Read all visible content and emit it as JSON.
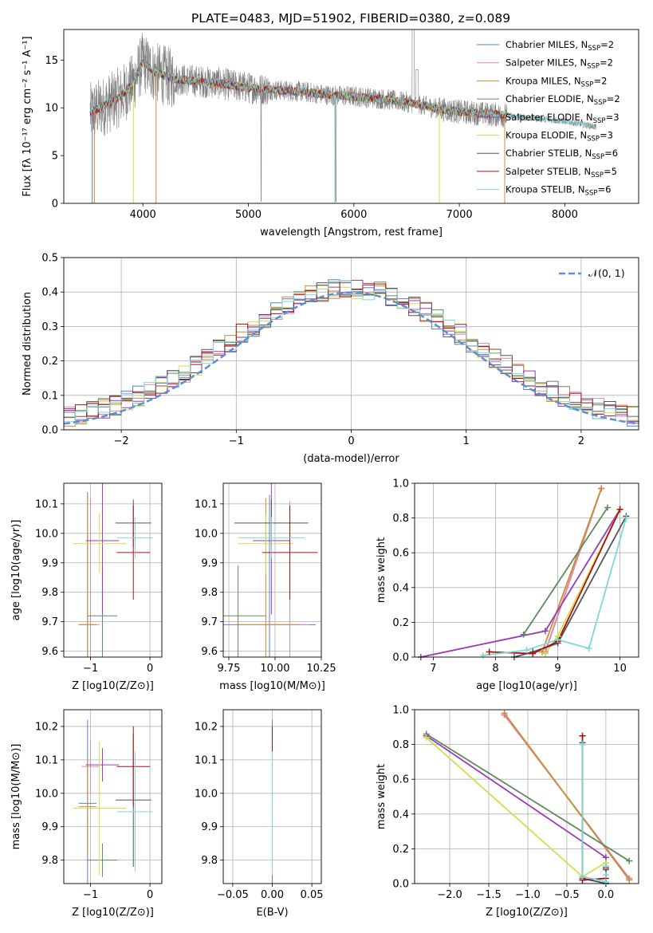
{
  "figure_title": "PLATE=0483, MJD=51902, FIBERID=0380, z=0.089",
  "colors": {
    "Chabrier MILES": "#5b7fd6",
    "Salpeter MILES": "#e08aa8",
    "Kroupa MILES": "#cc8c34",
    "Chabrier ELODIE": "#5e8a5e",
    "Salpeter ELODIE": "#9a3ab8",
    "Kroupa ELODIE": "#cfe04c",
    "Chabrier STELIB": "#555555",
    "Salpeter STELIB": "#aa1010",
    "Kroupa STELIB": "#7fd8d8",
    "data": "#808080",
    "normal": "#5b8fd6",
    "orange": "#e07030"
  },
  "chart_data": [
    {
      "id": "spectrum",
      "type": "line",
      "title": "PLATE=0483, MJD=51902, FIBERID=0380, z=0.089",
      "xlabel": "wavelength [Angstrom, rest frame]",
      "ylabel": "Flux [fλ 10⁻¹⁷ erg cm⁻² s⁻¹ A⁻¹]",
      "xlim": [
        3250,
        8700
      ],
      "ylim": [
        0,
        18.2
      ],
      "xticks": [
        4000,
        5000,
        6000,
        7000,
        8000
      ],
      "yticks": [
        0,
        5,
        10,
        15
      ],
      "legend": [
        "Chabrier MILES, N_SSP=2",
        "Salpeter MILES, N_SSP=2",
        "Kroupa MILES, N_SSP=2",
        "Chabrier ELODIE, N_SSP=2",
        "Salpeter ELODIE, N_SSP=3",
        "Kroupa ELODIE, N_SSP=3",
        "Chabrier STELIB, N_SSP=6",
        "Salpeter STELIB, N_SSP=5",
        "Kroupa STELIB, N_SSP=6"
      ],
      "legend_labels": [
        {
          "name": "Chabrier MILES",
          "n": "2",
          "color": "Chabrier MILES"
        },
        {
          "name": "Salpeter MILES",
          "n": "2",
          "color": "Salpeter MILES"
        },
        {
          "name": "Kroupa MILES",
          "n": "2",
          "color": "Kroupa MILES"
        },
        {
          "name": "Chabrier ELODIE",
          "n": "2",
          "color": "Chabrier ELODIE"
        },
        {
          "name": "Salpeter ELODIE",
          "n": "3",
          "color": "Salpeter ELODIE"
        },
        {
          "name": "Kroupa ELODIE",
          "n": "3",
          "color": "Kroupa ELODIE"
        },
        {
          "name": "Chabrier STELIB",
          "n": "6",
          "color": "Chabrier STELIB"
        },
        {
          "name": "Salpeter STELIB",
          "n": "5",
          "color": "Salpeter STELIB"
        },
        {
          "name": "Kroupa STELIB",
          "n": "6",
          "color": "Kroupa STELIB"
        }
      ],
      "legend_placement": "top-right",
      "continuum": [
        [
          3500,
          9.5
        ],
        [
          3600,
          10.0
        ],
        [
          3700,
          10.6
        ],
        [
          3800,
          11.3
        ],
        [
          3900,
          12.5
        ],
        [
          4000,
          14.8
        ],
        [
          4100,
          13.8
        ],
        [
          4200,
          13.4
        ],
        [
          4300,
          13.0
        ],
        [
          4500,
          12.8
        ],
        [
          4700,
          12.6
        ],
        [
          5000,
          12.1
        ],
        [
          5200,
          11.9
        ],
        [
          5500,
          11.7
        ],
        [
          5800,
          11.3
        ],
        [
          6000,
          11.2
        ],
        [
          6300,
          10.9
        ],
        [
          6600,
          10.4
        ],
        [
          6800,
          9.9
        ],
        [
          7000,
          9.6
        ],
        [
          7200,
          9.4
        ],
        [
          7450,
          9.2
        ],
        [
          7600,
          9.0
        ],
        [
          7800,
          8.8
        ],
        [
          8000,
          8.6
        ],
        [
          8300,
          8.0
        ]
      ],
      "model_end": 7450,
      "data_end": 8300
    },
    {
      "id": "residuals",
      "type": "line",
      "xlabel": "(data-model)/error",
      "ylabel": "Normed distribution",
      "xlim": [
        -2.5,
        2.5
      ],
      "ylim": [
        0,
        0.5
      ],
      "xticks": [
        -2,
        -1,
        0,
        1,
        2
      ],
      "yticks": [
        0.0,
        0.1,
        0.2,
        0.3,
        0.4,
        0.5
      ],
      "legend": [
        "𝒩(0, 1)"
      ],
      "legend_placement": "top-right",
      "grid": true,
      "bin_width": 0.1,
      "curve": "normal pdf, mean 0, sigma 1"
    },
    {
      "id": "age_vs_Z",
      "type": "scatter",
      "xlabel": "Z [log10(Z/Z⊙)]",
      "ylabel": "age [log10(age/yr)]",
      "xlim": [
        -1.45,
        0.2
      ],
      "ylim": [
        9.58,
        10.17
      ],
      "xticks": [
        -1,
        0
      ],
      "yticks": [
        9.6,
        9.7,
        9.8,
        9.9,
        10.0,
        10.1
      ],
      "grid": true,
      "series": [
        {
          "name": "Chabrier MILES",
          "x": -1.05,
          "xerr": 0.15,
          "y": 9.69,
          "yerr": 0.45
        },
        {
          "name": "Salpeter MILES",
          "x": -1.0,
          "xerr": 0.15,
          "y": 9.69,
          "yerr": 0.43
        },
        {
          "name": "Kroupa MILES",
          "x": -1.05,
          "xerr": 0.15,
          "y": 9.69,
          "yerr": 0.44
        },
        {
          "name": "Chabrier ELODIE",
          "x": -0.8,
          "xerr": 0.25,
          "y": 9.72,
          "yerr": 0.17
        },
        {
          "name": "Salpeter ELODIE",
          "x": -0.8,
          "xerr": 0.28,
          "y": 9.975,
          "yerr": 0.25
        },
        {
          "name": "Kroupa ELODIE",
          "x": -0.85,
          "xerr": 0.45,
          "y": 9.965,
          "yerr": 0.1
        },
        {
          "name": "Chabrier STELIB",
          "x": -0.28,
          "xerr": 0.3,
          "y": 10.035,
          "yerr": 0.08
        },
        {
          "name": "Salpeter STELIB",
          "x": -0.28,
          "xerr": 0.28,
          "y": 9.935,
          "yerr": 0.16
        },
        {
          "name": "Kroupa STELIB",
          "x": -0.25,
          "xerr": 0.3,
          "y": 9.985,
          "yerr": 0.07
        }
      ]
    },
    {
      "id": "age_vs_mass",
      "type": "scatter",
      "xlabel": "mass [log10(M/M⊙)]",
      "ylabel": "",
      "xlim": [
        9.72,
        10.25
      ],
      "ylim": [
        9.58,
        10.17
      ],
      "xticks": [
        9.75,
        10.0,
        10.25
      ],
      "yticks": [
        9.6,
        9.7,
        9.8,
        9.9,
        10.0,
        10.1
      ],
      "grid": true,
      "series": [
        {
          "name": "Chabrier MILES",
          "x": 9.97,
          "xerr": 0.25,
          "y": 9.69,
          "yerr": 0.44
        },
        {
          "name": "Salpeter MILES",
          "x": 10.08,
          "xerr": 0.1,
          "y": 9.69,
          "yerr": 0.42
        },
        {
          "name": "Kroupa MILES",
          "x": 9.95,
          "xerr": 0.18,
          "y": 9.69,
          "yerr": 0.43
        },
        {
          "name": "Chabrier ELODIE",
          "x": 9.8,
          "xerr": 0.15,
          "y": 9.72,
          "yerr": 0.17
        },
        {
          "name": "Salpeter ELODIE",
          "x": 9.98,
          "xerr": 0.1,
          "y": 9.975,
          "yerr": 0.25
        },
        {
          "name": "Kroupa ELODIE",
          "x": 9.95,
          "xerr": 0.15,
          "y": 9.965,
          "yerr": 0.1
        },
        {
          "name": "Chabrier STELIB",
          "x": 9.98,
          "xerr": 0.2,
          "y": 10.035,
          "yerr": 0.08
        },
        {
          "name": "Salpeter STELIB",
          "x": 10.08,
          "xerr": 0.15,
          "y": 9.935,
          "yerr": 0.16
        },
        {
          "name": "Kroupa STELIB",
          "x": 9.98,
          "xerr": 0.18,
          "y": 9.985,
          "yerr": 0.07
        }
      ]
    },
    {
      "id": "weight_vs_age",
      "type": "line",
      "xlabel": "age  [log10(age/yr)]",
      "ylabel": "mass weight",
      "xlim": [
        6.7,
        10.3
      ],
      "ylim": [
        0,
        1.0
      ],
      "xticks": [
        7,
        8,
        9,
        10
      ],
      "yticks": [
        0.0,
        0.2,
        0.4,
        0.6,
        0.8,
        1.0
      ],
      "grid": true,
      "series": [
        {
          "name": "Chabrier MILES",
          "x": [
            8.8,
            9.7
          ],
          "y": [
            0.03,
            0.97
          ]
        },
        {
          "name": "Salpeter MILES",
          "x": [
            8.8,
            9.7
          ],
          "y": [
            0.03,
            0.97
          ]
        },
        {
          "name": "Kroupa MILES",
          "x": [
            8.75,
            9.7
          ],
          "y": [
            0.03,
            0.97
          ]
        },
        {
          "name": "Chabrier ELODIE",
          "x": [
            8.45,
            9.8
          ],
          "y": [
            0.13,
            0.86
          ]
        },
        {
          "name": "Salpeter ELODIE",
          "x": [
            6.8,
            8.8,
            10.0
          ],
          "y": [
            0.0,
            0.15,
            0.85
          ]
        },
        {
          "name": "Kroupa ELODIE",
          "x": [
            8.8,
            9.0,
            10.0
          ],
          "y": [
            0.02,
            0.12,
            0.85
          ]
        },
        {
          "name": "Chabrier STELIB",
          "x": [
            8.3,
            8.6,
            9.0,
            10.1
          ],
          "y": [
            0.0,
            0.03,
            0.08,
            0.81
          ]
        },
        {
          "name": "Salpeter STELIB",
          "x": [
            7.9,
            8.6,
            9.0,
            10.0
          ],
          "y": [
            0.03,
            0.02,
            0.09,
            0.85
          ]
        },
        {
          "name": "Kroupa STELIB",
          "x": [
            7.8,
            8.5,
            9.0,
            9.5,
            10.1
          ],
          "y": [
            0.01,
            0.04,
            0.1,
            0.05,
            0.8
          ]
        }
      ]
    },
    {
      "id": "mass_vs_Z",
      "type": "scatter",
      "xlabel": "Z [log10(Z/Z⊙)]",
      "ylabel": "mass [log10(M/M⊙)]",
      "xlim": [
        -1.45,
        0.2
      ],
      "ylim": [
        9.73,
        10.25
      ],
      "xticks": [
        -1,
        0
      ],
      "yticks": [
        9.8,
        9.9,
        10.0,
        10.1,
        10.2
      ],
      "grid": true,
      "series": [
        {
          "name": "Chabrier MILES",
          "x": -1.05,
          "xerr": 0.15,
          "y": 9.97,
          "yerr": 0.25
        },
        {
          "name": "Salpeter MILES",
          "x": -1.0,
          "xerr": 0.15,
          "y": 10.08,
          "yerr": 0.08
        },
        {
          "name": "Kroupa MILES",
          "x": -1.05,
          "xerr": 0.15,
          "y": 9.96,
          "yerr": 0.15
        },
        {
          "name": "Chabrier ELODIE",
          "x": -0.8,
          "xerr": 0.25,
          "y": 9.8,
          "yerr": 0.05
        },
        {
          "name": "Salpeter ELODIE",
          "x": -0.8,
          "xerr": 0.28,
          "y": 10.085,
          "yerr": 0.05
        },
        {
          "name": "Kroupa ELODIE",
          "x": -0.85,
          "xerr": 0.45,
          "y": 9.955,
          "yerr": 0.2
        },
        {
          "name": "Chabrier STELIB",
          "x": -0.28,
          "xerr": 0.3,
          "y": 9.98,
          "yerr": 0.2
        },
        {
          "name": "Salpeter STELIB",
          "x": -0.28,
          "xerr": 0.28,
          "y": 10.08,
          "yerr": 0.12
        },
        {
          "name": "Kroupa STELIB",
          "x": -0.25,
          "xerr": 0.3,
          "y": 9.945,
          "yerr": 0.18
        }
      ]
    },
    {
      "id": "mass_vs_EBV",
      "type": "scatter",
      "xlabel": "E(B-V)",
      "ylabel": "",
      "xlim": [
        -0.062,
        0.062
      ],
      "ylim": [
        9.73,
        10.25
      ],
      "xticks": [
        -0.05,
        0.0,
        0.05
      ],
      "yticks": [
        9.8,
        9.9,
        10.0,
        10.1,
        10.2
      ],
      "grid": true,
      "series": [
        {
          "name": "Chabrier MILES",
          "x": 0,
          "y": 9.97,
          "yerr": 0.25
        },
        {
          "name": "Salpeter MILES",
          "x": 0,
          "y": 10.08,
          "yerr": 0.08
        },
        {
          "name": "Kroupa MILES",
          "x": 0,
          "y": 9.96,
          "yerr": 0.15
        },
        {
          "name": "Chabrier ELODIE",
          "x": 0,
          "y": 9.8,
          "yerr": 0.05
        },
        {
          "name": "Salpeter ELODIE",
          "x": 0,
          "y": 10.085,
          "yerr": 0.05
        },
        {
          "name": "Kroupa ELODIE",
          "x": 0,
          "y": 9.955,
          "yerr": 0.2
        },
        {
          "name": "Chabrier STELIB",
          "x": 0,
          "y": 9.98,
          "yerr": 0.2
        },
        {
          "name": "Salpeter STELIB",
          "x": 0,
          "y": 10.08,
          "yerr": 0.12
        },
        {
          "name": "Kroupa STELIB",
          "x": 0,
          "y": 9.945,
          "yerr": 0.18
        }
      ]
    },
    {
      "id": "weight_vs_Z",
      "type": "line",
      "xlabel": "Z [log10(Z/Z⊙)]",
      "ylabel": "mass weight",
      "xlim": [
        -2.45,
        0.42
      ],
      "ylim": [
        0,
        1.0
      ],
      "xticks": [
        -2.0,
        -1.5,
        -1.0,
        -0.5,
        0.0
      ],
      "yticks": [
        0.0,
        0.2,
        0.4,
        0.6,
        0.8,
        1.0
      ],
      "grid": true,
      "series": [
        {
          "name": "Chabrier MILES",
          "x": [
            -1.3,
            0.3
          ],
          "y": [
            0.97,
            0.03
          ]
        },
        {
          "name": "Salpeter MILES",
          "x": [
            -1.3,
            0.3
          ],
          "y": [
            0.97,
            0.03
          ]
        },
        {
          "name": "Kroupa MILES",
          "x": [
            -1.3,
            0.3
          ],
          "y": [
            0.98,
            0.02
          ]
        },
        {
          "name": "Chabrier ELODIE",
          "x": [
            -2.3,
            0.3
          ],
          "y": [
            0.86,
            0.13
          ]
        },
        {
          "name": "Salpeter ELODIE",
          "x": [
            -2.3,
            0.0,
            0.0
          ],
          "y": [
            0.85,
            0.15,
            0.0
          ]
        },
        {
          "name": "Kroupa ELODIE",
          "x": [
            -2.3,
            -0.3,
            0.0
          ],
          "y": [
            0.84,
            0.04,
            0.12
          ]
        },
        {
          "name": "Chabrier STELIB",
          "x": [
            -0.3,
            -0.3,
            0.0,
            0.0
          ],
          "y": [
            0.81,
            0.03,
            0.0,
            0.08
          ]
        },
        {
          "name": "Salpeter STELIB",
          "x": [
            -0.3,
            -0.3,
            0.0,
            0.0
          ],
          "y": [
            0.85,
            0.02,
            0.03,
            0.09
          ]
        },
        {
          "name": "Kroupa STELIB",
          "x": [
            -0.3,
            -0.3,
            0.0,
            0.0,
            0.0
          ],
          "y": [
            0.8,
            0.04,
            0.01,
            0.1,
            0.05
          ]
        }
      ]
    }
  ]
}
